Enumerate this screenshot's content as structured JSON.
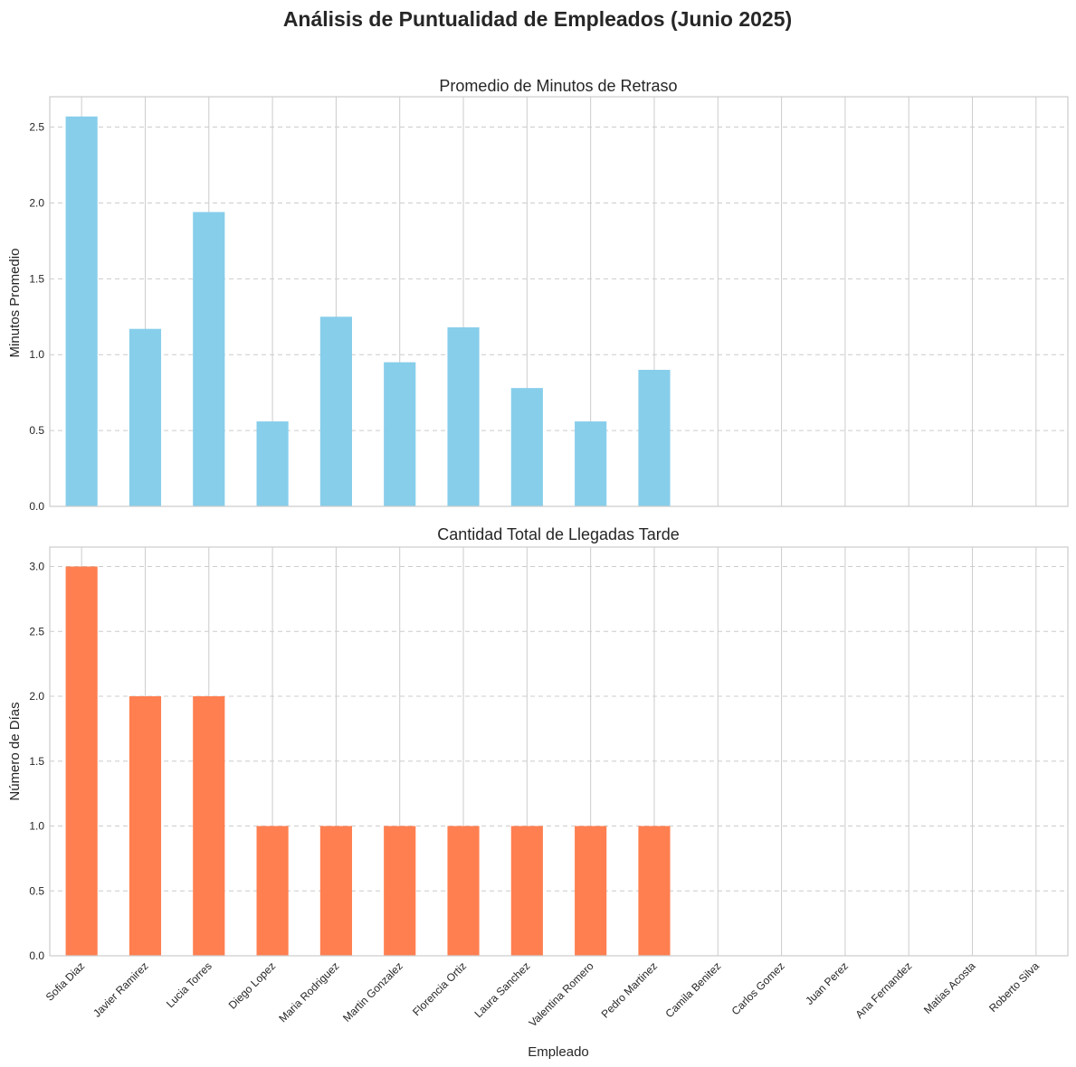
{
  "suptitle": "Análisis de Puntualidad de Empleados (Junio 2025)",
  "colors": {
    "top_bars": "#87CEEB",
    "bottom_bars": "#FF7F50",
    "grid": "#cccccc",
    "axis": "#cccccc"
  },
  "chart_data": [
    {
      "type": "bar",
      "title": "Promedio de Minutos de Retraso",
      "xlabel": "",
      "ylabel": "Minutos Promedio",
      "ylim": [
        0,
        2.7
      ],
      "yticks": [
        "0.0",
        "0.5",
        "1.0",
        "1.5",
        "2.0",
        "2.5"
      ],
      "grid": true,
      "categories": [
        "Sofia Diaz",
        "Javier Ramirez",
        "Lucia Torres",
        "Diego Lopez",
        "Maria Rodriguez",
        "Martin Gonzalez",
        "Florencia Ortiz",
        "Laura Sanchez",
        "Valentina Romero",
        "Pedro Martinez",
        "Camila Benitez",
        "Carlos Gomez",
        "Juan Perez",
        "Ana Fernandez",
        "Matias Acosta",
        "Roberto Silva"
      ],
      "values": [
        2.57,
        1.17,
        1.94,
        0.56,
        1.25,
        0.95,
        1.18,
        0.78,
        0.56,
        0.9,
        0,
        0,
        0,
        0,
        0,
        0
      ]
    },
    {
      "type": "bar",
      "title": "Cantidad Total de Llegadas Tarde",
      "xlabel": "Empleado",
      "ylabel": "Número de Días",
      "ylim": [
        0,
        3.15
      ],
      "yticks": [
        "0.0",
        "0.5",
        "1.0",
        "1.5",
        "2.0",
        "2.5",
        "3.0"
      ],
      "grid": true,
      "categories": [
        "Sofia Diaz",
        "Javier Ramirez",
        "Lucia Torres",
        "Diego Lopez",
        "Maria Rodriguez",
        "Martin Gonzalez",
        "Florencia Ortiz",
        "Laura Sanchez",
        "Valentina Romero",
        "Pedro Martinez",
        "Camila Benitez",
        "Carlos Gomez",
        "Juan Perez",
        "Ana Fernandez",
        "Matias Acosta",
        "Roberto Silva"
      ],
      "values": [
        3,
        2,
        2,
        1,
        1,
        1,
        1,
        1,
        1,
        1,
        0,
        0,
        0,
        0,
        0,
        0
      ]
    }
  ]
}
